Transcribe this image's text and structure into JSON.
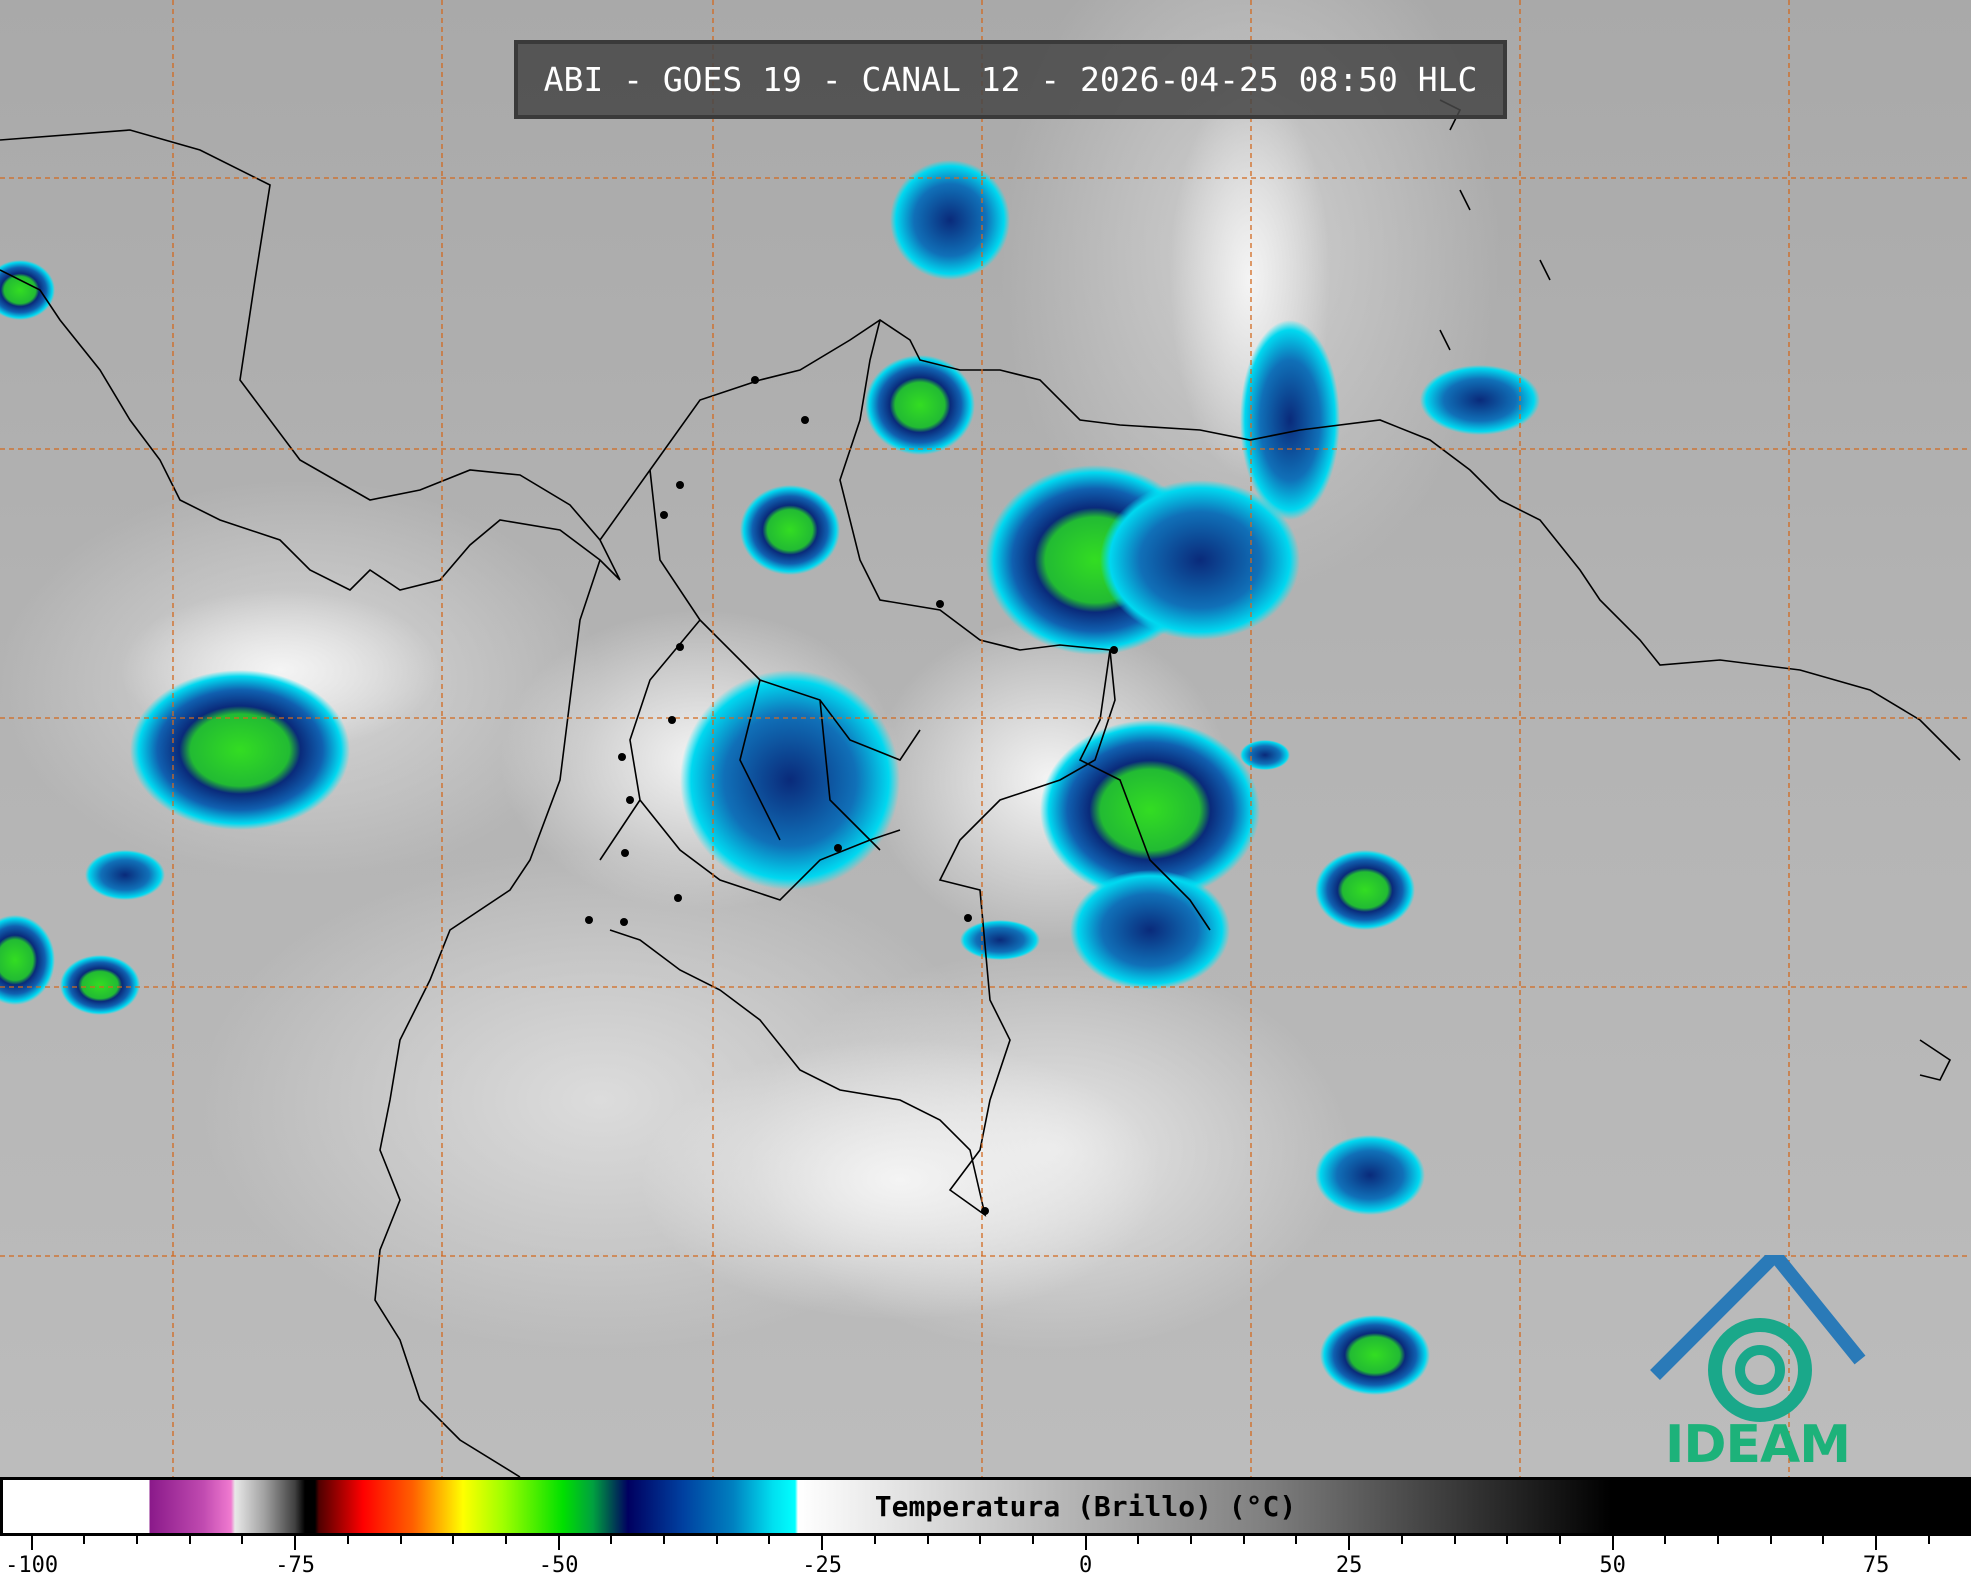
{
  "title": "ABI - GOES 19 - CANAL 12 - 2026-04-25 08:50 HLC",
  "colorbar": {
    "label": "Temperatura (Brillo) (°C)",
    "min": -103,
    "max": 84,
    "major_ticks": [
      "-100",
      "-75",
      "-50",
      "-25",
      "0",
      "25",
      "50",
      "75"
    ],
    "major_values": [
      -100,
      -75,
      -50,
      -25,
      0,
      25,
      50,
      75
    ],
    "minor_step": 5
  },
  "logo": {
    "text": "IDEAM",
    "color": "#1db27a",
    "roof_color": "#2a7ab8"
  },
  "colors": {
    "grid": "#d2691e",
    "coast": "#000000",
    "cold_cloud_green": "#33dd22",
    "cold_cloud_navy": "#0a2a7a",
    "cold_cloud_cyan": "#00e0f0"
  }
}
